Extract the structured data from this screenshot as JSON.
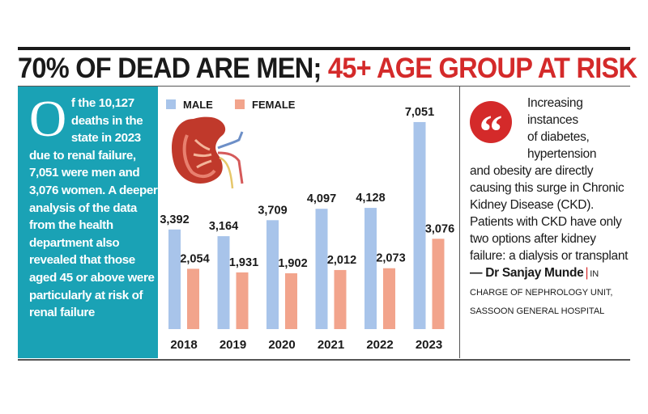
{
  "headline": {
    "part1": "70% OF DEAD ARE MEN;",
    "part2": "45+ AGE GROUP AT RISK"
  },
  "sidebar": {
    "dropcap": "O",
    "text": "f the 10,127 deaths in the state in 2023 due to renal failure, 7,051 were men and 3,076 women. A deeper analysis of the data from the health department also revealed that those aged 45 or above were particularly at risk of renal failure"
  },
  "quote": {
    "line1": "Increasing",
    "line2": "instances",
    "line3": "of diabetes,",
    "line4": "hypertension",
    "rest": "and obesity are directly causing this surge in Chronic Kidney Disease (CKD). Patients with CKD have only two options after kidney failure: a dialysis or transplant",
    "author": "— Dr Sanjay Munde",
    "separator": "|",
    "affiliation_in": "IN",
    "affiliation": "CHARGE OF NEPHROLOGY UNIT, SASSOON GENERAL HOSPITAL",
    "icon": "quote-marks-icon"
  },
  "chart_data": {
    "type": "bar",
    "categories": [
      "2018",
      "2019",
      "2020",
      "2021",
      "2022",
      "2023"
    ],
    "series": [
      {
        "name": "MALE",
        "values": [
          3392,
          3164,
          3709,
          4097,
          4128,
          7051
        ],
        "labels": [
          "3,392",
          "3,164",
          "3,709",
          "4,097",
          "4,128",
          "7,051"
        ],
        "color": "#a8c4ea"
      },
      {
        "name": "FEMALE",
        "values": [
          2054,
          1931,
          1902,
          2012,
          2073,
          3076
        ],
        "labels": [
          "2,054",
          "1,931",
          "1,902",
          "2,012",
          "2,073",
          "3,076"
        ],
        "color": "#f2a48c"
      }
    ],
    "ylim": [
      0,
      7600
    ],
    "legend": "top-left",
    "illustration": "kidney-icon"
  }
}
